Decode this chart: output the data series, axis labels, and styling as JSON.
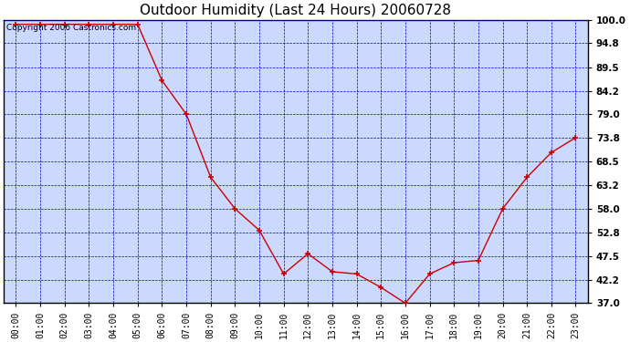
{
  "title": "Outdoor Humidity (Last 24 Hours) 20060728",
  "copyright_text": "Copyright 2006 Castronics.com",
  "x_labels": [
    "00:00",
    "01:00",
    "02:00",
    "03:00",
    "04:00",
    "05:00",
    "06:00",
    "07:00",
    "08:00",
    "09:00",
    "10:00",
    "11:00",
    "12:00",
    "13:00",
    "14:00",
    "15:00",
    "16:00",
    "17:00",
    "18:00",
    "19:00",
    "20:00",
    "21:00",
    "22:00",
    "23:00"
  ],
  "y_values": [
    99.0,
    99.0,
    99.0,
    99.0,
    99.0,
    99.0,
    86.5,
    79.0,
    65.0,
    58.0,
    53.2,
    43.5,
    48.0,
    44.0,
    43.5,
    40.5,
    37.0,
    43.5,
    46.0,
    46.5,
    58.0,
    65.0,
    70.5,
    73.8
  ],
  "line_color": "#cc0000",
  "marker_color": "#cc0000",
  "bg_color": "#ffffff",
  "plot_bg_color": "#ccd9ff",
  "grid_color": "#0000cc",
  "border_color": "#000000",
  "title_color": "#000000",
  "ylim_min": 37.0,
  "ylim_max": 100.0,
  "ytick_vals": [
    100.0,
    94.8,
    89.5,
    84.2,
    79.0,
    73.8,
    68.5,
    63.2,
    58.0,
    52.8,
    47.5,
    42.2,
    37.0
  ],
  "copyright_fontsize": 6.5,
  "title_fontsize": 11,
  "tick_fontsize": 7,
  "ytick_fontsize": 7.5
}
